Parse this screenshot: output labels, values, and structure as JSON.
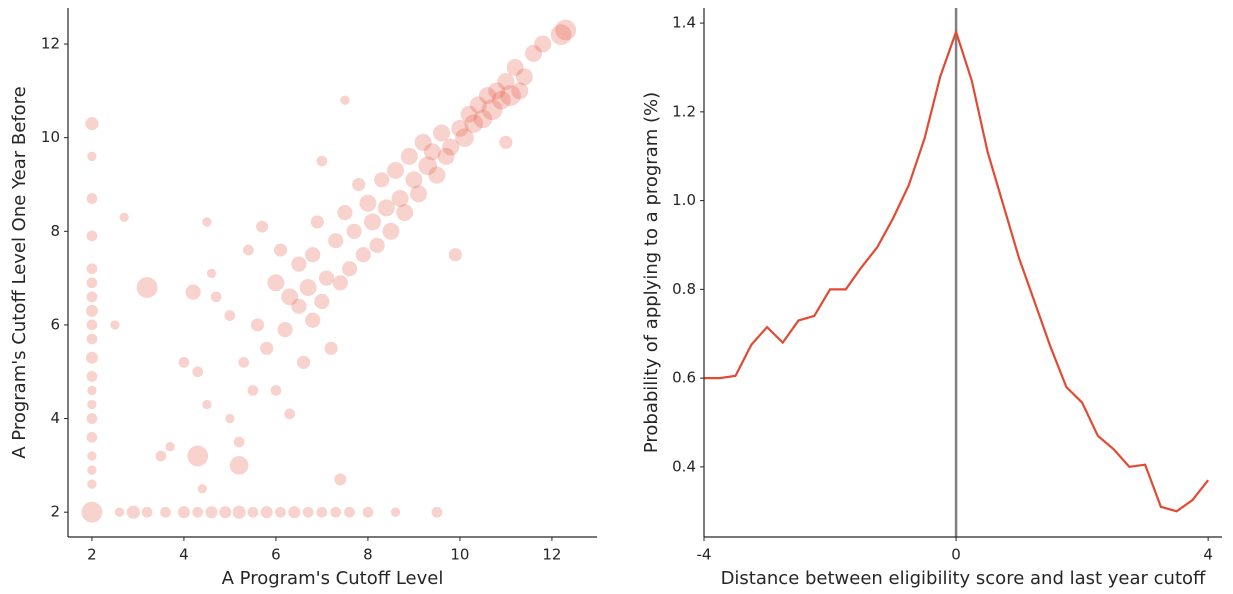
{
  "chart_data": [
    {
      "type": "scatter",
      "xlabel": "A Program's Cutoff Level",
      "ylabel": "A Program's Cutoff Level One Year Before",
      "color": "#e24a33",
      "xlim": [
        1.48,
        12.98
      ],
      "xticks": [
        2,
        4,
        6,
        8,
        10,
        12
      ],
      "ylim": [
        1.47,
        12.77
      ],
      "yticks": [
        2,
        4,
        6,
        8,
        10,
        12
      ],
      "x": [
        2,
        2,
        2,
        2,
        2,
        2,
        2,
        2,
        2,
        2,
        2,
        2,
        2,
        2,
        2,
        2,
        2,
        2,
        2,
        2,
        2.6,
        2.9,
        3.2,
        3.6,
        4.0,
        4.3,
        4.6,
        4.9,
        5.2,
        5.5,
        5.8,
        6.1,
        6.4,
        6.7,
        7.0,
        7.3,
        7.6,
        8.0,
        8.6,
        9.5,
        3.2,
        2.7,
        2.5,
        3.5,
        3.7,
        4.3,
        4.2,
        4.0,
        4.5,
        4.6,
        4.4,
        4.5,
        4.3,
        4.7,
        5.0,
        5.0,
        5.2,
        5.2,
        5.3,
        5.4,
        5.5,
        5.6,
        5.7,
        5.8,
        6.0,
        6.0,
        6.1,
        6.2,
        6.3,
        6.3,
        6.5,
        6.5,
        6.6,
        6.7,
        6.8,
        6.8,
        6.9,
        7.0,
        7.0,
        7.1,
        7.2,
        7.3,
        7.4,
        7.4,
        7.5,
        7.5,
        7.6,
        7.7,
        7.8,
        7.9,
        8.0,
        8.1,
        8.2,
        8.3,
        8.4,
        8.5,
        8.6,
        8.7,
        8.8,
        8.9,
        9.0,
        9.1,
        9.2,
        9.3,
        9.4,
        9.5,
        9.6,
        9.7,
        9.8,
        9.9,
        10.0,
        10.1,
        10.2,
        10.3,
        10.4,
        10.5,
        10.6,
        10.7,
        10.8,
        10.9,
        11.0,
        11.1,
        11.2,
        11.3,
        11.4,
        11.0,
        11.6,
        11.8,
        12.2,
        12.3
      ],
      "values": [
        2,
        2.6,
        2.9,
        3.2,
        3.6,
        4.0,
        4.3,
        4.6,
        4.9,
        5.3,
        5.7,
        6.0,
        6.3,
        6.6,
        6.9,
        7.2,
        7.9,
        8.7,
        9.6,
        10.3,
        2,
        2,
        2,
        2,
        2,
        2,
        2,
        2,
        2,
        2,
        2,
        2,
        2,
        2,
        2,
        2,
        2,
        2,
        2,
        2,
        6.8,
        8.3,
        6.0,
        3.2,
        3.4,
        3.2,
        6.7,
        5.2,
        8.2,
        7.1,
        2.5,
        4.3,
        5.0,
        6.6,
        6.2,
        4.0,
        3.0,
        3.5,
        5.2,
        7.6,
        4.6,
        6.0,
        8.1,
        5.5,
        4.6,
        6.9,
        7.6,
        5.9,
        4.1,
        6.6,
        6.4,
        7.3,
        5.2,
        6.8,
        6.1,
        7.5,
        8.2,
        6.5,
        9.5,
        7.0,
        5.5,
        7.8,
        6.9,
        2.7,
        8.4,
        10.8,
        7.2,
        8.0,
        9.0,
        7.5,
        8.6,
        8.2,
        7.7,
        9.1,
        8.5,
        8.0,
        9.3,
        8.7,
        8.4,
        9.6,
        9.1,
        8.8,
        9.9,
        9.4,
        9.7,
        9.2,
        10.1,
        9.6,
        9.8,
        7.5,
        10.2,
        10.0,
        10.5,
        10.3,
        10.7,
        10.4,
        10.9,
        10.6,
        11.0,
        10.8,
        11.2,
        10.9,
        11.5,
        11.0,
        11.3,
        9.9,
        11.8,
        12.0,
        12.2,
        12.3
      ],
      "sizes": [
        150,
        30,
        30,
        30,
        40,
        40,
        30,
        30,
        40,
        50,
        40,
        40,
        50,
        40,
        40,
        40,
        40,
        40,
        30,
        60,
        30,
        60,
        40,
        40,
        50,
        40,
        50,
        50,
        60,
        40,
        50,
        40,
        50,
        40,
        40,
        40,
        40,
        40,
        30,
        40,
        150,
        30,
        30,
        40,
        30,
        150,
        80,
        40,
        30,
        30,
        30,
        30,
        40,
        40,
        40,
        30,
        120,
        40,
        40,
        40,
        40,
        60,
        50,
        60,
        40,
        100,
        60,
        80,
        40,
        100,
        80,
        80,
        60,
        100,
        80,
        80,
        60,
        80,
        40,
        80,
        60,
        80,
        80,
        50,
        80,
        30,
        80,
        80,
        60,
        80,
        100,
        100,
        80,
        80,
        100,
        100,
        100,
        100,
        100,
        100,
        100,
        100,
        100,
        120,
        100,
        100,
        100,
        100,
        100,
        60,
        100,
        120,
        100,
        120,
        100,
        120,
        100,
        150,
        100,
        120,
        100,
        150,
        100,
        100,
        100,
        60,
        100,
        100,
        150,
        150
      ]
    },
    {
      "type": "line",
      "xlabel": "Distance between eligibility score and last year cutoff",
      "ylabel": "Probability of applying to a program (%)",
      "color": "#e24a33",
      "vline": {
        "x": 0,
        "color": "#808080"
      },
      "xlim": [
        -4,
        4.22
      ],
      "xticks": [
        -4,
        0,
        4
      ],
      "ylim": [
        0.242,
        1.434
      ],
      "yticks": [
        0.4,
        0.6,
        0.8,
        {
          "value": 1,
          "label": "1.0"
        },
        1.2,
        1.4
      ],
      "x": [
        -4,
        -3.75,
        -3.5,
        -3.25,
        -3,
        -2.75,
        -2.5,
        -2.25,
        -2,
        -1.75,
        -1.5,
        -1.25,
        -1,
        -0.75,
        -0.5,
        -0.25,
        0,
        0.25,
        0.5,
        0.75,
        1,
        1.25,
        1.5,
        1.75,
        2,
        2.25,
        2.5,
        2.75,
        3,
        3.25,
        3.5,
        3.75,
        4
      ],
      "values": [
        0.6,
        0.6,
        0.605,
        0.675,
        0.715,
        0.68,
        0.73,
        0.74,
        0.8,
        0.8,
        0.85,
        0.895,
        0.96,
        1.035,
        1.14,
        1.28,
        1.38,
        1.27,
        1.11,
        0.99,
        0.87,
        0.77,
        0.67,
        0.58,
        0.545,
        0.47,
        0.44,
        0.4,
        0.405,
        0.31,
        0.3,
        0.325,
        0.37
      ]
    }
  ]
}
